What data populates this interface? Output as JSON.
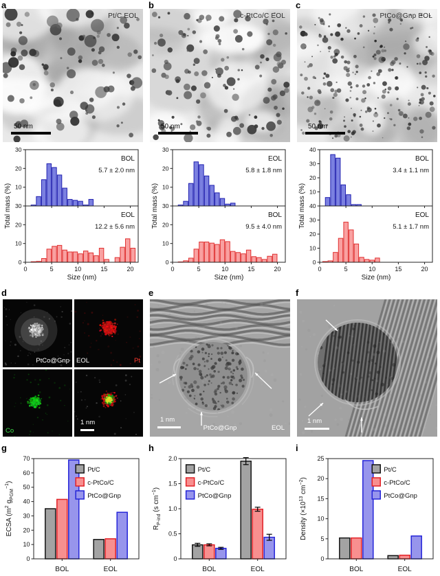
{
  "colors": {
    "hist_blue_fill": "#7b80e0",
    "hist_blue_edge": "#2020b0",
    "hist_red_fill": "#f9a1a1",
    "hist_red_edge": "#e03030",
    "ptc_fill": "#a3a3a3",
    "ptc_edge": "#141414",
    "ptco_fill": "#f88f8f",
    "ptco_edge": "#e22026",
    "gnp_fill": "#9795ec",
    "gnp_edge": "#2424d8",
    "pt_label": "#ff3b30",
    "co_label": "#3ee04a"
  },
  "panels": {
    "a": {
      "letter": "a",
      "tem_label": "Pt/C EOL",
      "scalebar_label": "50 nm"
    },
    "b": {
      "letter": "b",
      "tem_label": "c-PtCo/C EOL",
      "scalebar_label": "50 nm"
    },
    "c": {
      "letter": "c",
      "tem_label": "PtCo@Gnp EOL",
      "scalebar_label": "50 nm"
    },
    "d": {
      "letter": "d",
      "label_sample": "PtCo@Gnp",
      "label_state": "EOL",
      "label_pt": "Pt",
      "label_co": "Co",
      "scalebar_label": "1 nm"
    },
    "e": {
      "letter": "e",
      "scalebar_label": "1 nm",
      "label_sample": "PtCo@Gnp",
      "label_state": "EOL"
    },
    "f": {
      "letter": "f",
      "scalebar_label": "1 nm"
    },
    "g": {
      "letter": "g"
    },
    "h": {
      "letter": "h"
    },
    "i": {
      "letter": "i"
    }
  },
  "chart_data": [
    {
      "id": "hist-a",
      "type": "histogram_pair",
      "panel": "a",
      "xlabel": "Size (nm)",
      "ylabel": "Total mass (%)",
      "xlim": [
        0,
        21.5
      ],
      "xticks": [
        0,
        5,
        10,
        15,
        20
      ],
      "subplots": [
        {
          "name": "BOL",
          "stat": "5.7 ± 2.0 nm",
          "series_color": "blue",
          "ylim": [
            0,
            30
          ],
          "yticks": [
            10,
            20,
            30
          ],
          "first_bin": 1,
          "bin_width": 1,
          "values": [
            0.5,
            5,
            14,
            22.5,
            20.5,
            16.5,
            9.5,
            3.5,
            3,
            2.5,
            0.5,
            3.5
          ]
        },
        {
          "name": "EOL",
          "stat": "12.2 ± 5.6 nm",
          "series_color": "red",
          "ylim": [
            0,
            30
          ],
          "yticks": [
            0,
            10,
            20,
            30
          ],
          "first_bin": 1,
          "bin_width": 1,
          "values": [
            0.3,
            0.5,
            2,
            7,
            8.5,
            9,
            6.5,
            5.5,
            5.5,
            4.5,
            6,
            5,
            3.5,
            7.5,
            1.5,
            0,
            2.5,
            8,
            12.5,
            7.5
          ]
        }
      ]
    },
    {
      "id": "hist-b",
      "type": "histogram_pair",
      "panel": "b",
      "xlabel": "Size (nm)",
      "ylabel": "Total mass (%)",
      "xlim": [
        0,
        21.5
      ],
      "xticks": [
        0,
        5,
        10,
        15,
        20
      ],
      "subplots": [
        {
          "name": "EOL",
          "stat": "5.8 ± 1.8 nm",
          "series_color": "blue",
          "ylim": [
            0,
            30
          ],
          "yticks": [
            10,
            20,
            30
          ],
          "first_bin": 1,
          "bin_width": 1,
          "values": [
            0.5,
            2.5,
            12,
            23.5,
            22,
            16,
            11,
            7,
            4,
            1,
            1.5
          ]
        },
        {
          "name": "BOL",
          "stat": "9.5 ± 4.0 nm",
          "series_color": "red",
          "ylim": [
            0,
            30
          ],
          "yticks": [
            0,
            10,
            20,
            30
          ],
          "first_bin": 1,
          "bin_width": 1,
          "values": [
            0.2,
            0.8,
            2.2,
            7,
            10.8,
            10.8,
            10.2,
            9.5,
            12,
            11,
            5.8,
            5.2,
            4.5,
            6.5,
            3,
            2.5,
            1.5,
            3.2,
            4.3
          ]
        }
      ]
    },
    {
      "id": "hist-c",
      "type": "histogram_pair",
      "panel": "c",
      "xlabel": "Size (nm)",
      "ylabel": "Total mass (%)",
      "xlim": [
        0,
        21.5
      ],
      "xticks": [
        0,
        5,
        10,
        15,
        20
      ],
      "subplots": [
        {
          "name": "BOL",
          "stat": "3.4 ± 1.1 nm",
          "series_color": "blue",
          "ylim": [
            0,
            40
          ],
          "yticks": [
            10,
            20,
            30,
            40
          ],
          "first_bin": 1,
          "bin_width": 1,
          "values": [
            6,
            36.5,
            34,
            15,
            8,
            1,
            1
          ]
        },
        {
          "name": "EOL",
          "stat": "5.1 ± 1.7 nm",
          "series_color": "red",
          "ylim": [
            0,
            40
          ],
          "yticks": [
            0,
            10,
            20,
            30,
            40
          ],
          "first_bin": 0.5,
          "bin_width": 1,
          "values": [
            0.5,
            1,
            7,
            17,
            28.5,
            23,
            13,
            3.5,
            2,
            1.5,
            3
          ]
        }
      ]
    },
    {
      "id": "bar-g",
      "type": "grouped_bar",
      "panel": "g",
      "categories": [
        "BOL",
        "EOL"
      ],
      "ylim": [
        0,
        70
      ],
      "yticks": [
        0,
        10,
        20,
        30,
        40,
        50,
        60,
        70
      ],
      "ytick_labels": [
        "0",
        "10",
        "20",
        "30",
        "40",
        "50",
        "60",
        "70"
      ],
      "ylabel_parts": [
        {
          "t": "ECSA (m"
        },
        {
          "t": "2",
          "style": "sup"
        },
        {
          "t": " g"
        },
        {
          "t": "PGM",
          "style": "sub"
        },
        {
          "t": "−1",
          "style": "sup"
        },
        {
          "t": ")"
        }
      ],
      "series": [
        {
          "name": "Pt/C",
          "color": "ptc",
          "values": [
            35,
            13.5
          ]
        },
        {
          "name": "c-PtCo/C",
          "color": "ptco",
          "values": [
            41.5,
            14
          ]
        },
        {
          "name": "PtCo@Gnp",
          "color": "gnp",
          "values": [
            69,
            32.5
          ]
        }
      ],
      "legend": {
        "x": 0.4,
        "y": 0.02
      }
    },
    {
      "id": "bar-h",
      "type": "grouped_bar",
      "panel": "h",
      "categories": [
        "BOL",
        "EOL"
      ],
      "ylim": [
        0,
        2.0
      ],
      "yticks": [
        0,
        0.5,
        1.0,
        1.5,
        2.0
      ],
      "ytick_labels": [
        "0",
        "0.5",
        "1.0",
        "1.5",
        "2.0"
      ],
      "ylabel_parts": [
        {
          "t": "R"
        },
        {
          "t": "P-ind",
          "style": "sub"
        },
        {
          "t": " (s cm"
        },
        {
          "t": "−1",
          "style": "sup"
        },
        {
          "t": ")"
        }
      ],
      "series": [
        {
          "name": "Pt/C",
          "color": "ptc",
          "values": [
            0.28,
            1.95
          ],
          "errors": [
            0.03,
            0.07
          ]
        },
        {
          "name": "c-PtCo/C",
          "color": "ptco",
          "values": [
            0.28,
            0.99
          ],
          "errors": [
            0.02,
            0.04
          ]
        },
        {
          "name": "PtCo@Gnp",
          "color": "gnp",
          "values": [
            0.21,
            0.43
          ],
          "errors": [
            0.02,
            0.06
          ]
        }
      ],
      "legend": {
        "x": 0.05,
        "y": 0.02
      }
    },
    {
      "id": "bar-i",
      "type": "grouped_bar",
      "panel": "i",
      "categories": [
        "BOL",
        "EOL"
      ],
      "ylim": [
        0,
        25
      ],
      "yticks": [
        0,
        5,
        10,
        15,
        20,
        25
      ],
      "ytick_labels": [
        "0",
        "5",
        "10",
        "15",
        "20",
        "25"
      ],
      "ylabel_parts": [
        {
          "t": "Density (×10"
        },
        {
          "t": "13",
          "style": "sup"
        },
        {
          "t": " cm"
        },
        {
          "t": "−2",
          "style": "sup"
        },
        {
          "t": ")"
        }
      ],
      "series": [
        {
          "name": "Pt/C",
          "color": "ptc",
          "values": [
            5.2,
            0.8
          ]
        },
        {
          "name": "c-PtCo/C",
          "color": "ptco",
          "values": [
            5.2,
            0.9
          ]
        },
        {
          "name": "PtCo@Gnp",
          "color": "gnp",
          "values": [
            24.5,
            5.7
          ]
        }
      ],
      "legend": {
        "x": 0.42,
        "y": 0.02
      }
    }
  ]
}
